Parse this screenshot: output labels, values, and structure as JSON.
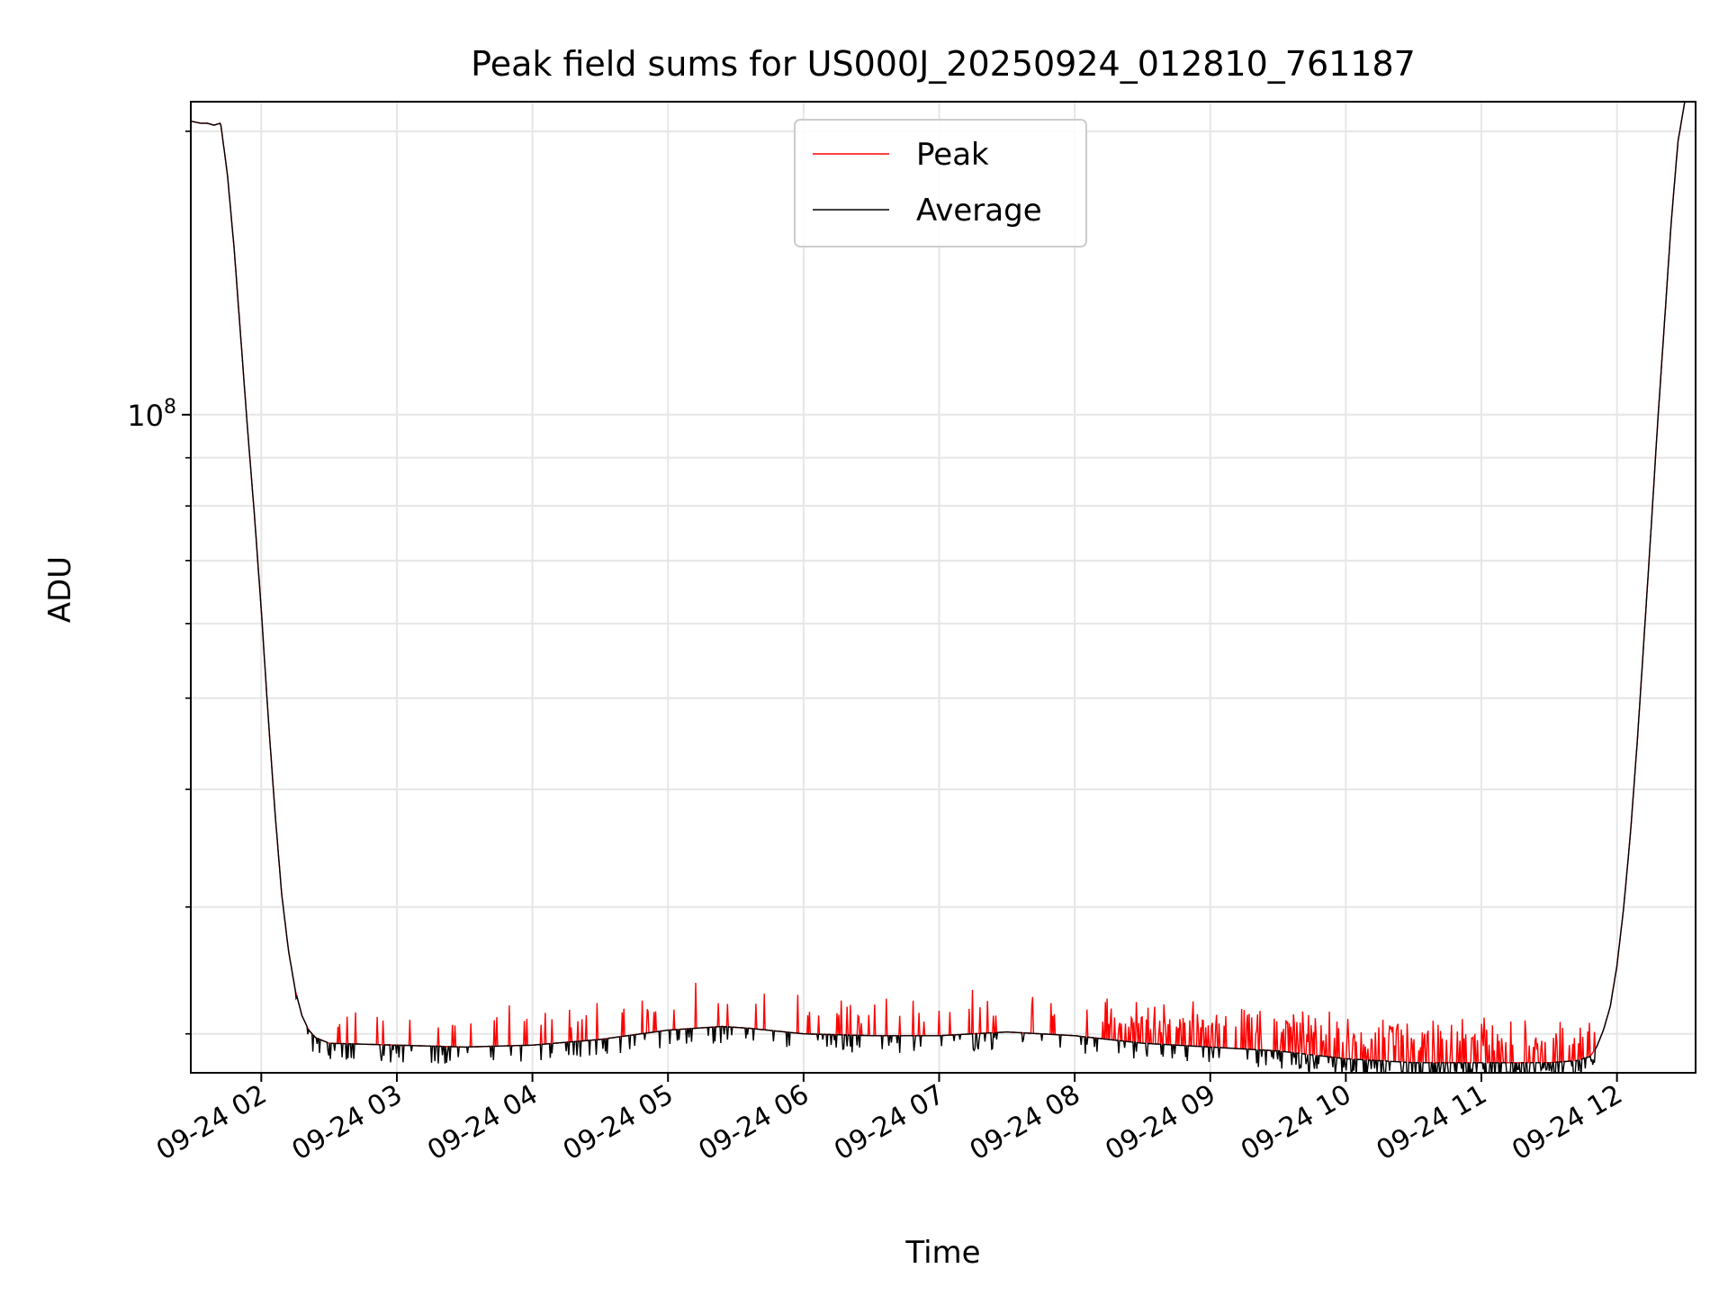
{
  "chart_data": {
    "type": "line",
    "title": "Peak field sums for US000J_20250924_012810_761187",
    "xlabel": "Time",
    "ylabel": "ADU",
    "yscale": "log",
    "grid": true,
    "legend_position": "upper-center",
    "xlim": [
      1.48,
      12.58
    ],
    "ylim": [
      20000000,
      215000000
    ],
    "x_ticks": [
      {
        "value": 2,
        "label": "09-24 02"
      },
      {
        "value": 3,
        "label": "09-24 03"
      },
      {
        "value": 4,
        "label": "09-24 04"
      },
      {
        "value": 5,
        "label": "09-24 05"
      },
      {
        "value": 6,
        "label": "09-24 06"
      },
      {
        "value": 7,
        "label": "09-24 07"
      },
      {
        "value": 8,
        "label": "09-24 08"
      },
      {
        "value": 9,
        "label": "09-24 09"
      },
      {
        "value": 10,
        "label": "09-24 10"
      },
      {
        "value": 11,
        "label": "09-24 11"
      },
      {
        "value": 12,
        "label": "09-24 12"
      }
    ],
    "y_major_ticks": [
      {
        "value": 100000000,
        "base": "10",
        "exp": "8"
      }
    ],
    "y_minor_ticks": [
      22000000,
      30000000,
      40000000,
      50000000,
      60000000,
      70000000,
      80000000,
      90000000,
      200000000
    ],
    "series": [
      {
        "name": "Peak",
        "color": "#ff0000",
        "x": [
          1.48,
          1.55,
          1.6,
          1.65,
          1.7,
          1.75,
          1.8,
          1.85,
          1.9,
          1.95,
          2.0,
          2.05,
          2.1,
          2.15,
          2.2,
          2.25,
          2.3,
          2.35,
          2.4,
          2.5,
          3.0,
          3.5,
          4.0,
          4.5,
          5.0,
          5.4,
          5.6,
          6.0,
          6.5,
          7.0,
          7.5,
          8.0,
          8.5,
          9.0,
          9.5,
          10.0,
          10.5,
          11.0,
          11.5,
          11.7,
          11.8,
          11.85,
          11.9,
          11.95,
          12.0,
          12.05,
          12.1,
          12.15,
          12.2,
          12.25,
          12.3,
          12.35,
          12.4,
          12.45,
          12.5,
          12.58
        ],
        "y": [
          205000000,
          204000000,
          204000000,
          203000000,
          204000000,
          180000000,
          150000000,
          120000000,
          96000000,
          78000000,
          62000000,
          48000000,
          38000000,
          31000000,
          27000000,
          24500000,
          23000000,
          22200000,
          21800000,
          21500000,
          21400000,
          21300000,
          21400000,
          21700000,
          22200000,
          22400000,
          22300000,
          22000000,
          21900000,
          21900000,
          22100000,
          21900000,
          21500000,
          21300000,
          21100000,
          20700000,
          20500000,
          20500000,
          20500000,
          20600000,
          20800000,
          21300000,
          22200000,
          23500000,
          26000000,
          30000000,
          36000000,
          45000000,
          58000000,
          75000000,
          98000000,
          125000000,
          160000000,
          195000000,
          215000000,
          220000000
        ],
        "spike_region": [
          2.2,
          11.85
        ],
        "spike_heights": [
          22600000,
          22900000,
          23200000,
          23500000
        ]
      },
      {
        "name": "Average",
        "color": "#000000",
        "x": [
          1.48,
          1.55,
          1.6,
          1.65,
          1.7,
          1.75,
          1.8,
          1.85,
          1.9,
          1.95,
          2.0,
          2.05,
          2.1,
          2.15,
          2.2,
          2.25,
          2.3,
          2.35,
          2.4,
          2.5,
          3.0,
          3.5,
          4.0,
          4.5,
          5.0,
          5.4,
          5.6,
          6.0,
          6.5,
          7.0,
          7.5,
          8.0,
          8.5,
          9.0,
          9.5,
          10.0,
          10.5,
          11.0,
          11.5,
          11.7,
          11.8,
          11.85,
          11.9,
          11.95,
          12.0,
          12.05,
          12.1,
          12.15,
          12.2,
          12.25,
          12.3,
          12.35,
          12.4,
          12.45,
          12.5,
          12.58
        ],
        "y": [
          205000000,
          204000000,
          204000000,
          203000000,
          204000000,
          180000000,
          150000000,
          120000000,
          96000000,
          78000000,
          62000000,
          48000000,
          38000000,
          31000000,
          27000000,
          24500000,
          23000000,
          22200000,
          21800000,
          21500000,
          21400000,
          21300000,
          21400000,
          21700000,
          22200000,
          22400000,
          22300000,
          22000000,
          21900000,
          21900000,
          22100000,
          21900000,
          21500000,
          21300000,
          21100000,
          20700000,
          20500000,
          20500000,
          20500000,
          20600000,
          20800000,
          21300000,
          22200000,
          23500000,
          26000000,
          30000000,
          36000000,
          45000000,
          58000000,
          75000000,
          98000000,
          125000000,
          160000000,
          195000000,
          215000000,
          220000000
        ],
        "dip_region": [
          2.2,
          11.85
        ]
      }
    ]
  }
}
